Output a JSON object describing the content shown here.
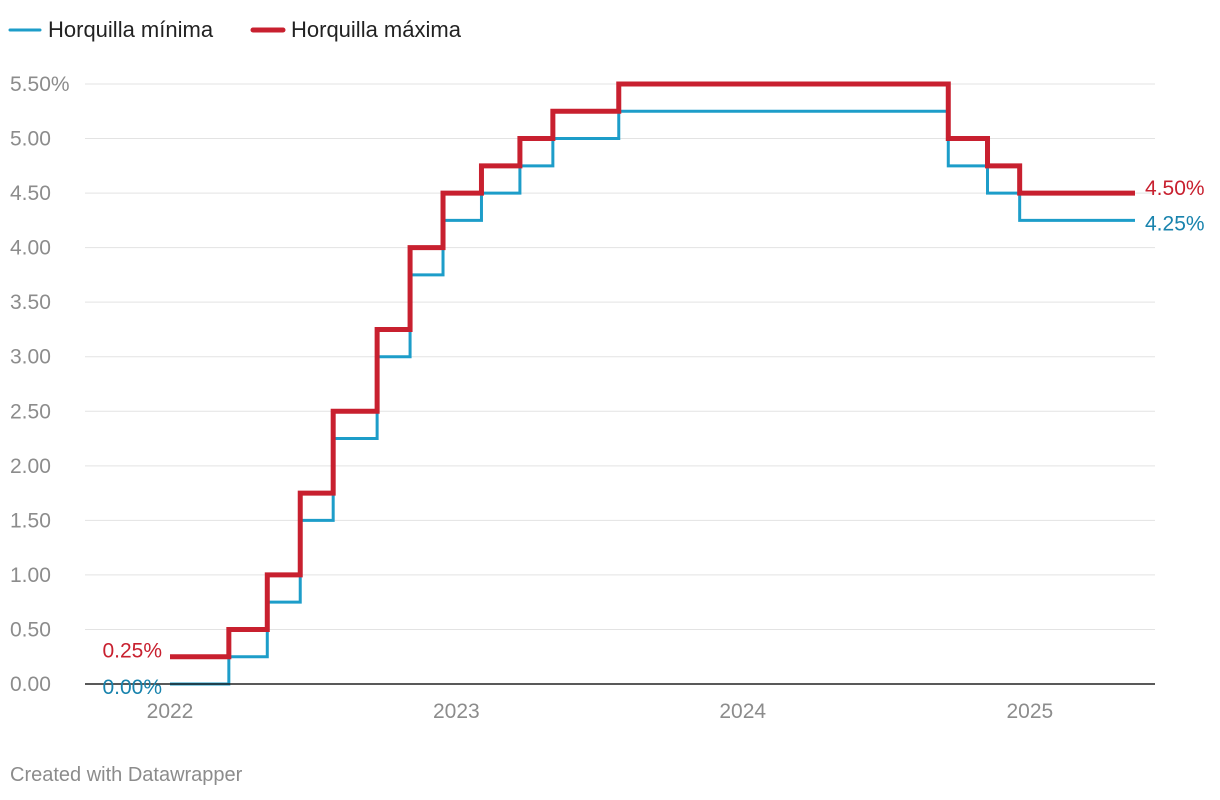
{
  "chart_data": {
    "type": "line",
    "step": true,
    "x_unit": "date",
    "ylim": [
      0,
      5.5
    ],
    "yticks": [
      0,
      0.5,
      1.0,
      1.5,
      2.0,
      2.5,
      3.0,
      3.5,
      4.0,
      4.5,
      5.0,
      5.5
    ],
    "ytick_labels": [
      "0.00",
      "0.50",
      "1.00",
      "1.50",
      "2.00",
      "2.50",
      "3.00",
      "3.50",
      "4.00",
      "4.50",
      "5.00",
      "5.50%"
    ],
    "xticks": [
      "2022-01-01",
      "2023-01-01",
      "2024-01-01",
      "2025-01-01"
    ],
    "xtick_labels": [
      "2022",
      "2023",
      "2024",
      "2025"
    ],
    "grid": true,
    "legend": "top-left",
    "series": [
      {
        "name": "Horquilla mínima",
        "color": "#1d9dc9",
        "start_label": "0.00%",
        "end_label": "4.25%",
        "points": [
          [
            "2022-01-01",
            0.0
          ],
          [
            "2022-03-17",
            0.25
          ],
          [
            "2022-05-05",
            0.75
          ],
          [
            "2022-06-16",
            1.5
          ],
          [
            "2022-07-28",
            2.25
          ],
          [
            "2022-09-22",
            3.0
          ],
          [
            "2022-11-03",
            3.75
          ],
          [
            "2022-12-15",
            4.25
          ],
          [
            "2023-02-02",
            4.5
          ],
          [
            "2023-03-23",
            4.75
          ],
          [
            "2023-05-04",
            5.0
          ],
          [
            "2023-07-27",
            5.25
          ],
          [
            "2024-09-19",
            4.75
          ],
          [
            "2024-11-08",
            4.5
          ],
          [
            "2024-12-19",
            4.25
          ],
          [
            "2025-05-15",
            4.25
          ]
        ]
      },
      {
        "name": "Horquilla máxima",
        "color": "#c8202f",
        "start_label": "0.25%",
        "end_label": "4.50%",
        "points": [
          [
            "2022-01-01",
            0.25
          ],
          [
            "2022-03-17",
            0.5
          ],
          [
            "2022-05-05",
            1.0
          ],
          [
            "2022-06-16",
            1.75
          ],
          [
            "2022-07-28",
            2.5
          ],
          [
            "2022-09-22",
            3.25
          ],
          [
            "2022-11-03",
            4.0
          ],
          [
            "2022-12-15",
            4.5
          ],
          [
            "2023-02-02",
            4.75
          ],
          [
            "2023-03-23",
            5.0
          ],
          [
            "2023-05-04",
            5.25
          ],
          [
            "2023-07-27",
            5.5
          ],
          [
            "2024-09-19",
            5.0
          ],
          [
            "2024-11-08",
            4.75
          ],
          [
            "2024-12-19",
            4.5
          ],
          [
            "2025-05-15",
            4.5
          ]
        ]
      }
    ]
  },
  "footer": {
    "credit": "Created with Datawrapper"
  }
}
